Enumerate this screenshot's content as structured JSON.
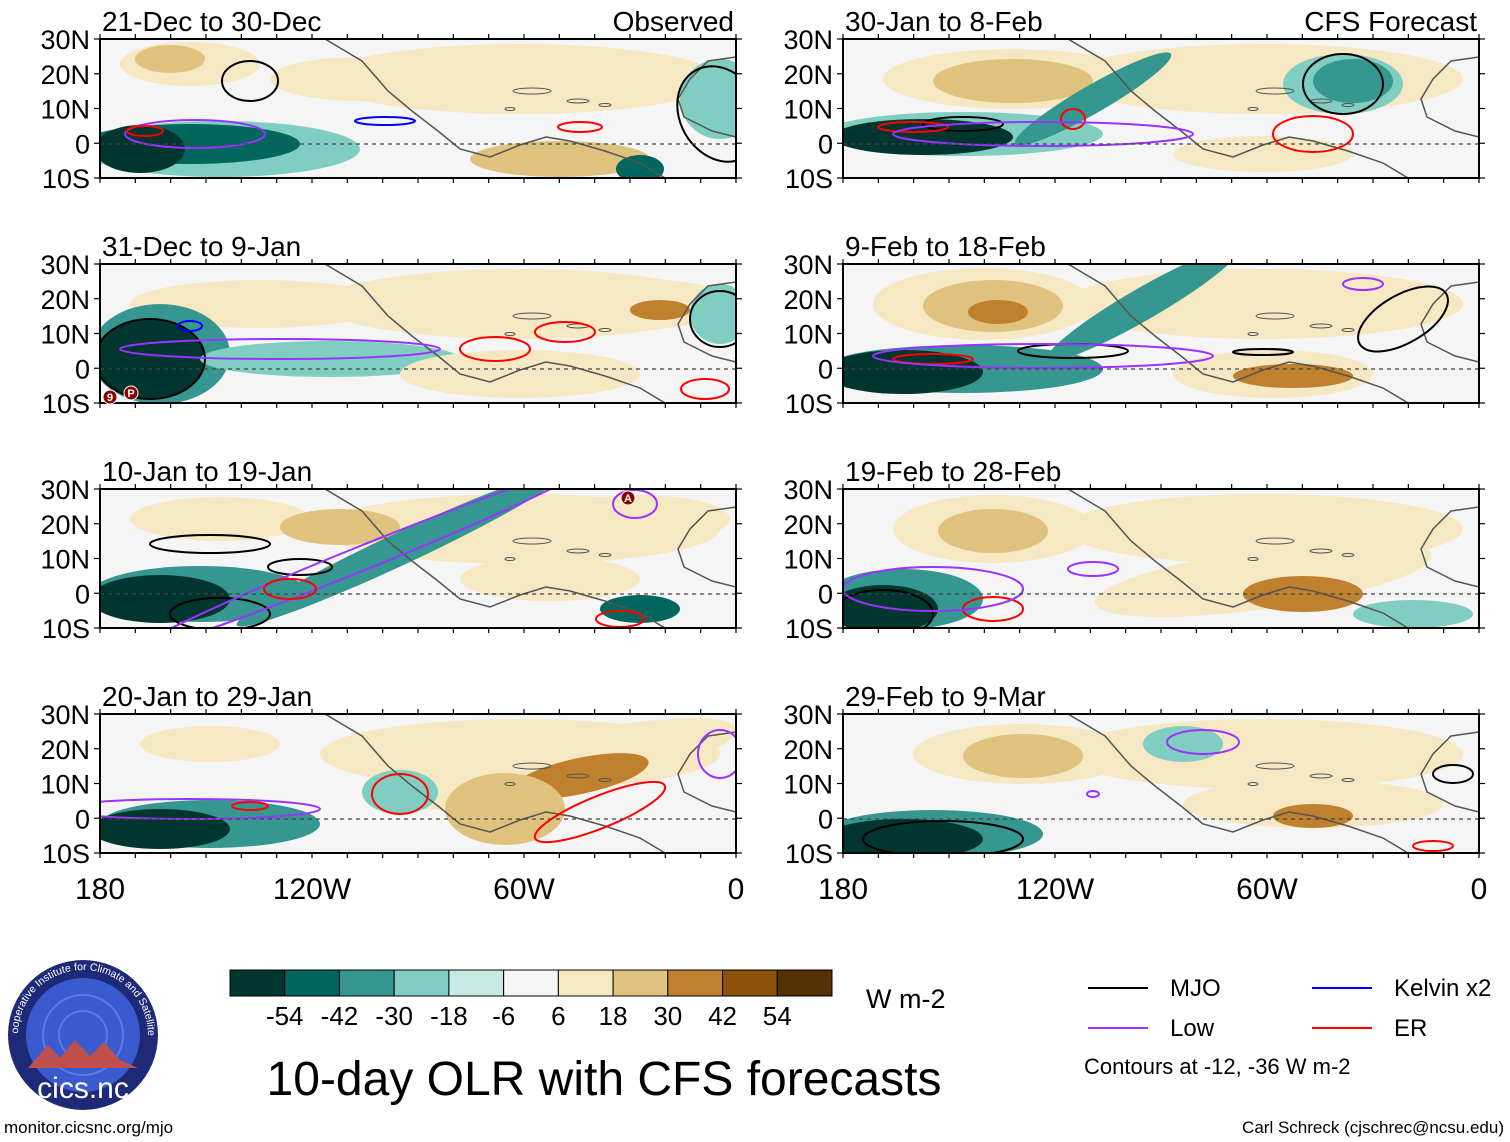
{
  "title": "10-day OLR with CFS forecasts",
  "footer": {
    "left": "monitor.cicsnc.org/mjo",
    "right": "Carl Schreck (cjschrec@ncsu.edu)"
  },
  "logo": {
    "text": "cics.nc",
    "ring_text": "Cooperative Institute for Climate and Satellites",
    "colors": {
      "ring": "#1e2a78",
      "inner": "#3a5bd0",
      "land": "#c0504d"
    }
  },
  "columns": [
    {
      "label": "Observed",
      "panels": [
        "21-Dec to 30-Dec",
        "31-Dec to 9-Jan",
        "10-Jan to 19-Jan",
        "20-Jan to 29-Jan"
      ]
    },
    {
      "label": "CFS Forecast",
      "panels": [
        "30-Jan to 8-Feb",
        "9-Feb to 18-Feb",
        "19-Feb to 28-Feb",
        "29-Feb to 9-Mar"
      ]
    }
  ],
  "lat_labels": [
    "30N",
    "20N",
    "10N",
    "0",
    "10S"
  ],
  "lon_labels": [
    "180",
    "120W",
    "60W",
    "0"
  ],
  "colorbar": {
    "unit": "W m-2",
    "labels": [
      "-54",
      "-42",
      "-30",
      "-18",
      "-6",
      "6",
      "18",
      "30",
      "42",
      "54"
    ],
    "colors": [
      "#00362f",
      "#01665e",
      "#35978f",
      "#80cdc1",
      "#c7eae5",
      "#f5f5f5",
      "#f6e8c3",
      "#dfc27d",
      "#bf812d",
      "#8c510a",
      "#543005"
    ]
  },
  "legend": {
    "items": [
      {
        "label": "MJO",
        "color": "#000000"
      },
      {
        "label": "Kelvin x2",
        "color": "#0000ff"
      },
      {
        "label": "Low",
        "color": "#9933ff"
      },
      {
        "label": "ER",
        "color": "#ff0000"
      }
    ],
    "note": "Contours at -12, -36 W m-2"
  },
  "storm_markers": [
    "9",
    "P",
    "A"
  ]
}
